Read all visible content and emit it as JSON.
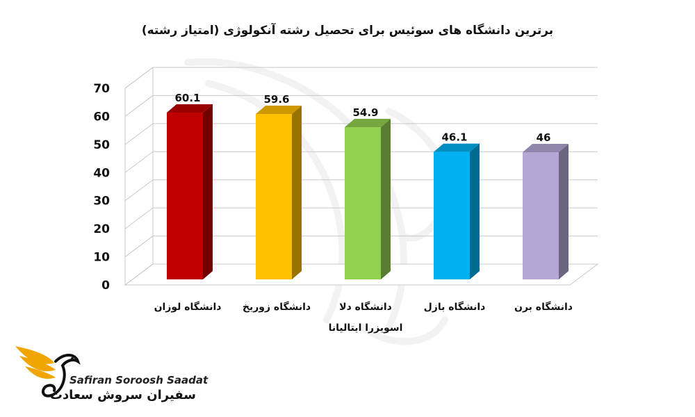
{
  "chart_data": {
    "type": "bar",
    "title": "برترین دانشگاه های سوئیس برای تحصیل رشته آنکولوژی (امتیاز رشته)",
    "categories": [
      [
        "دانشگاه لوزان"
      ],
      [
        "دانشگاه زوریخ"
      ],
      [
        "دانشگاه دلا",
        "اسویزرا ایتالیانا"
      ],
      [
        "دانشگاه بازل"
      ],
      [
        "دانشگاه برن"
      ]
    ],
    "values": [
      60.1,
      59.6,
      54.9,
      46.1,
      46
    ],
    "value_labels": [
      "60.1",
      "59.6",
      "54.9",
      "46.1",
      "46"
    ],
    "colors": [
      "#c00000",
      "#ffc000",
      "#92d050",
      "#00b0f0",
      "#b4a7d6"
    ],
    "ylim": [
      0,
      70
    ],
    "yticks": [
      "0",
      "10",
      "20",
      "30",
      "40",
      "50",
      "60",
      "70"
    ],
    "grid": true,
    "style": "3d-column"
  },
  "brand": {
    "name_en": "Safiran Soroosh Saadat",
    "name_fa": "سفیران سروش سعادت",
    "accent": "#f0a500"
  }
}
